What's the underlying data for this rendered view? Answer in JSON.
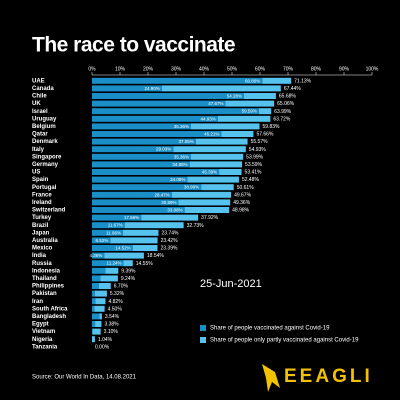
{
  "chart_data": {
    "type": "stacked_barh",
    "title": "The race to vaccinate",
    "annotation": "25-Jun-2021",
    "source": "Source: Our World In Data, 14.08.2021",
    "categories": [
      "UAE",
      "Canada",
      "Chile",
      "UK",
      "Israel",
      "Uruguay",
      "Belgium",
      "Qatar",
      "Denmark",
      "Italy",
      "Singapore",
      "Germany",
      "US",
      "Spain",
      "Portugal",
      "France",
      "Ireland",
      "Switzerland",
      "Turkey",
      "Brazil",
      "Japan",
      "Australia",
      "Mexico",
      "India",
      "Russia",
      "Indonesia",
      "Thailand",
      "Philippines",
      "Pakistan",
      "Iran",
      "South Africa",
      "Bangladesh",
      "Egypt",
      "Vietnam",
      "Nigeria",
      "Tanzania"
    ],
    "series": [
      {
        "name": "Share of people vaccinated against Covid-19",
        "color": "#1a8fc7",
        "values": [
          60.8,
          24.9,
          54.28,
          47.67,
          59.59,
          44.93,
          35.36,
          46.21,
          37.05,
          29.03,
          35.36,
          34.88,
          45.39,
          34.08,
          38.99,
          28.47,
          30.89,
          33.08,
          17.56,
          11.67,
          11.06,
          6.52,
          14.52,
          4.36,
          11.24,
          4.8,
          3.0,
          2.5,
          1.0,
          1.2,
          0.8,
          2.6,
          1.1,
          0.2,
          0,
          0
        ],
        "value_labels": [
          "60.80%",
          "24.90%",
          "54.28%",
          "47.67%",
          "59.59%",
          "44.93%",
          "35.36%",
          "46.21%",
          "37.05%",
          "29.03%",
          "35.36%",
          "34.88%",
          "45.39%",
          "34.08%",
          "38.99%",
          "28.47%",
          "30.89%",
          "33.08%",
          "17.56%",
          "11.67%",
          "11.06%",
          "6.52%",
          "14.52%",
          "4.36%",
          "11.24%",
          null,
          null,
          null,
          null,
          null,
          null,
          null,
          null,
          null,
          null,
          null
        ]
      },
      {
        "name": "Share of people only partly vaccinated against Covid-19",
        "color": "#56c3ee",
        "values": [
          10.33,
          42.54,
          11.4,
          17.39,
          4.4,
          18.79,
          24.47,
          11.45,
          18.52,
          25.9,
          18.63,
          18.71,
          8.02,
          18.4,
          11.62,
          21.2,
          18.47,
          15.9,
          20.36,
          21.06,
          12.68,
          16.9,
          8.87,
          14.18,
          3.31,
          4.59,
          6.24,
          4.2,
          4.32,
          3.62,
          3.7,
          0.94,
          2.28,
          2.9,
          1.04,
          0
        ]
      }
    ],
    "totals": [
      71.13,
      67.44,
      65.68,
      65.06,
      63.99,
      63.72,
      59.83,
      57.66,
      55.57,
      54.93,
      53.99,
      53.59,
      53.41,
      52.48,
      50.61,
      49.67,
      49.36,
      48.98,
      37.92,
      32.73,
      23.74,
      23.42,
      23.39,
      18.54,
      14.55,
      9.39,
      9.24,
      6.7,
      5.32,
      4.82,
      4.5,
      3.54,
      3.38,
      3.1,
      1.04,
      0
    ],
    "total_labels": [
      "71.13%",
      "67.44%",
      "65.68%",
      "65.06%",
      "63.99%",
      "63.72%",
      "59.83%",
      "57.66%",
      "55.57%",
      "54.93%",
      "53.99%",
      "53.59%",
      "53.41%",
      "52.48%",
      "50.61%",
      "49.67%",
      "49.36%",
      "48.98%",
      "37.92%",
      "32.73%",
      "23.74%",
      "23.42%",
      "23.39%",
      "18.54%",
      "14.55%",
      "9.39%",
      "9.24%",
      "6.70%",
      "5.32%",
      "4.82%",
      "4.50%",
      "3.54%",
      "3.38%",
      "3.10%",
      "1.04%",
      "0.00%"
    ],
    "xlim": [
      0,
      100
    ],
    "xticks": [
      {
        "value": 0,
        "label": "0%"
      },
      {
        "value": 10,
        "label": "10%"
      },
      {
        "value": 20,
        "label": "20%"
      },
      {
        "value": 30,
        "label": "30%"
      },
      {
        "value": 40,
        "label": "40%"
      },
      {
        "value": 50,
        "label": "50%"
      },
      {
        "value": 60,
        "label": "60%"
      },
      {
        "value": 70,
        "label": "70%"
      },
      {
        "value": 80,
        "label": "80%"
      },
      {
        "value": 90,
        "label": "90%"
      },
      {
        "value": 100,
        "label": "100%"
      }
    ]
  },
  "brand": "EEAGLI"
}
